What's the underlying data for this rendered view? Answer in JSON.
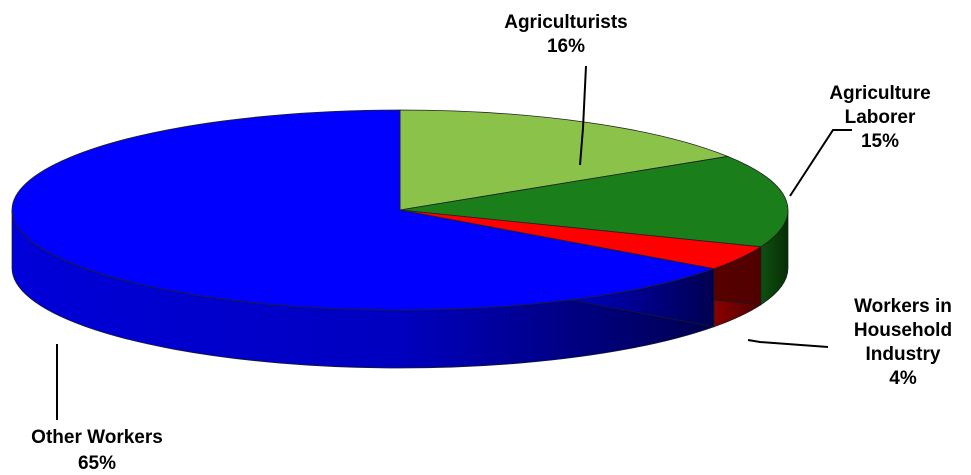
{
  "chart_data": {
    "type": "pie",
    "title": "",
    "slices": [
      {
        "name": "Agriculturists",
        "label_lines": [
          "Agriculturists"
        ],
        "percent_label": "16%",
        "value": 16,
        "color": "#8bc34a"
      },
      {
        "name": "Agriculture Laborer",
        "label_lines": [
          "Agriculture",
          "Laborer"
        ],
        "percent_label": "15%",
        "value": 15,
        "color": "#1a7f1a"
      },
      {
        "name": "Workers in Household Industry",
        "label_lines": [
          "Workers in",
          "Household",
          "Industry"
        ],
        "percent_label": "4%",
        "value": 4,
        "color": "#ff0000"
      },
      {
        "name": "Other Workers",
        "label_lines": [
          "Other Workers"
        ],
        "percent_label": "65%",
        "value": 65,
        "color": "#0000ff"
      }
    ],
    "legend": "none",
    "style": "3d-exploded-free"
  }
}
